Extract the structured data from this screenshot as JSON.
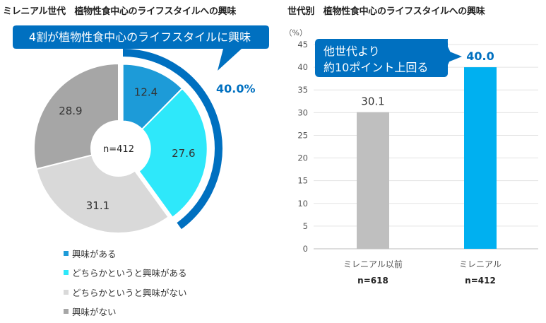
{
  "titles": {
    "left": "ミレニアル世代　植物性食中心のライフスタイルへの興味",
    "right": "世代別　植物性食中心のライフスタイルへの興味"
  },
  "colors": {
    "interested": "#1D9BD8",
    "somewhat_interested": "#2EE8FA",
    "somewhat_not": "#D9D9D9",
    "not_interested": "#A6A6A6",
    "bar_prev": "#BFBFBF",
    "bar_millennial": "#00B0F0",
    "callout": "#0070C0",
    "arc": "#0070C0"
  },
  "chart_data": [
    {
      "type": "pie",
      "center_label": "n=412",
      "slices": [
        {
          "name": "興味がある",
          "value": 12.4,
          "label": "12.4"
        },
        {
          "name": "どちらかというと興味がある",
          "value": 27.6,
          "label": "27.6"
        },
        {
          "name": "どちらかというと興味がない",
          "value": 31.1,
          "label": "31.1"
        },
        {
          "name": "興味がない",
          "value": 28.9,
          "label": "28.9"
        }
      ],
      "callout": "4割が植物性食中心のライフスタイルに興味",
      "highlight_total": "40.0%"
    },
    {
      "type": "bar",
      "unit": "（%）",
      "ylim": [
        0,
        45
      ],
      "yticks": [
        0,
        5,
        10,
        15,
        20,
        25,
        30,
        35,
        40,
        45
      ],
      "categories": [
        "ミレニアル以前",
        "ミレニアル"
      ],
      "n_labels": [
        "n=618",
        "n=412"
      ],
      "values": [
        30.1,
        40.0
      ],
      "value_labels": [
        "30.1",
        "40.0"
      ],
      "callout_lines": [
        "他世代より",
        "約10ポイント上回る"
      ]
    }
  ],
  "legend": [
    "興味がある",
    "どちらかというと興味がある",
    "どちらかというと興味がない",
    "興味がない"
  ]
}
